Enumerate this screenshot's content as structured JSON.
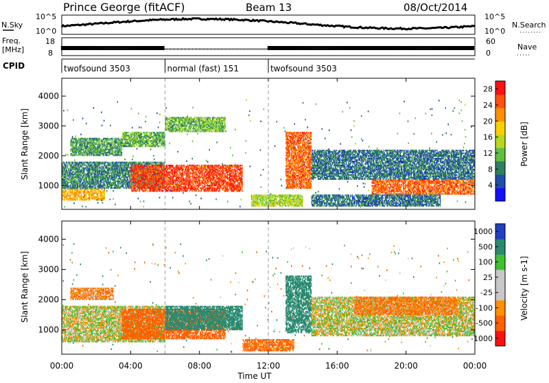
{
  "header": {
    "station": "Prince George (fitACF)",
    "beam": "Beam 13",
    "date": "08/Oct/2014"
  },
  "noise_panel": {
    "left_label": "N.Sky",
    "right_label": "N.Search",
    "right_ticks": [
      "10^5",
      "10^0"
    ],
    "left_ticks": [
      "10^5",
      "10^0"
    ]
  },
  "freq_panel": {
    "left_label_line1": "Freq.",
    "left_label_line2": "[MHz]",
    "left_ticks": [
      "18",
      "8"
    ],
    "right_label": "Nave",
    "right_ticks": [
      "60",
      "0"
    ]
  },
  "cpid_panel": {
    "label": "CPID",
    "segments": [
      {
        "name": "twofsound 3503",
        "start_hour": 0,
        "end_hour": 6
      },
      {
        "name": "normal (fast) 151",
        "start_hour": 6,
        "end_hour": 12
      },
      {
        "name": "twofsound 3503",
        "start_hour": 12,
        "end_hour": 24
      }
    ]
  },
  "x_axis": {
    "label": "Time UT",
    "ticks": [
      "00:00",
      "04:00",
      "08:00",
      "12:00",
      "16:00",
      "20:00",
      "00:00"
    ]
  },
  "chart_data": [
    {
      "type": "heatmap",
      "panel": "power",
      "ylabel": "Slant Range [km]",
      "yticks": [
        "1000",
        "2000",
        "3000",
        "4000"
      ],
      "ylim": [
        200,
        4600
      ],
      "xlim": [
        0,
        24
      ],
      "colorbar": {
        "label": "Power [dB]",
        "ticks": [
          "4",
          "8",
          "12",
          "16",
          "20",
          "24",
          "28"
        ],
        "range": [
          0,
          30
        ],
        "colors": [
          "#1010ff",
          "#1f4fa8",
          "#2f7f5f",
          "#5fbf3f",
          "#b8d820",
          "#ffd000",
          "#ff9000",
          "#ff5010",
          "#ff1010"
        ]
      },
      "regions": [
        {
          "t0": 0.0,
          "t1": 2.5,
          "r0": 500,
          "r1": 900,
          "level": 20
        },
        {
          "t0": 0.0,
          "t1": 6.0,
          "r0": 900,
          "r1": 1800,
          "level": 8
        },
        {
          "t0": 0.5,
          "t1": 3.5,
          "r0": 2000,
          "r1": 2600,
          "level": 10
        },
        {
          "t0": 3.5,
          "t1": 6.0,
          "r0": 2300,
          "r1": 2800,
          "level": 11
        },
        {
          "t0": 4.0,
          "t1": 10.5,
          "r0": 800,
          "r1": 1700,
          "level": 26
        },
        {
          "t0": 6.0,
          "t1": 9.5,
          "r0": 2800,
          "r1": 3300,
          "level": 12
        },
        {
          "t0": 11.0,
          "t1": 14.0,
          "r0": 300,
          "r1": 700,
          "level": 14
        },
        {
          "t0": 13.0,
          "t1": 14.5,
          "r0": 900,
          "r1": 2800,
          "level": 24
        },
        {
          "t0": 14.5,
          "t1": 24.0,
          "r0": 1200,
          "r1": 2200,
          "level": 7
        },
        {
          "t0": 18.0,
          "t1": 24.0,
          "r0": 700,
          "r1": 1200,
          "level": 24
        },
        {
          "t0": 14.5,
          "t1": 22.0,
          "r0": 300,
          "r1": 700,
          "level": 7
        }
      ]
    },
    {
      "type": "heatmap",
      "panel": "velocity",
      "ylabel": "Slant Range [km]",
      "yticks": [
        "1000",
        "2000",
        "3000",
        "4000"
      ],
      "ylim": [
        200,
        4600
      ],
      "xlim": [
        0,
        24
      ],
      "colorbar": {
        "label": "Velocity [m s-1]",
        "ticks": [
          "1000",
          "500",
          "100",
          "25",
          "-25",
          "-100",
          "-500",
          "-1000"
        ],
        "colors": [
          "#2040c0",
          "#2a8a70",
          "#40c030",
          "#c8c8c8",
          "#c8c8c8",
          "#ff9000",
          "#ff6000",
          "#ff1010"
        ]
      },
      "regions": [
        {
          "t0": 0.0,
          "t1": 6.0,
          "r0": 600,
          "r1": 1800,
          "level": 0
        },
        {
          "t0": 0.5,
          "t1": 3.0,
          "r0": 2000,
          "r1": 2400,
          "level": -100
        },
        {
          "t0": 3.5,
          "t1": 9.5,
          "r0": 700,
          "r1": 1700,
          "level": -200
        },
        {
          "t0": 6.0,
          "t1": 10.5,
          "r0": 1000,
          "r1": 1800,
          "level": 400
        },
        {
          "t0": 10.5,
          "t1": 13.5,
          "r0": 300,
          "r1": 700,
          "level": -150
        },
        {
          "t0": 13.0,
          "t1": 14.5,
          "r0": 900,
          "r1": 2800,
          "level": 200
        },
        {
          "t0": 14.5,
          "t1": 24.0,
          "r0": 800,
          "r1": 2100,
          "level": 0
        },
        {
          "t0": 17.0,
          "t1": 23.0,
          "r0": 1500,
          "r1": 2100,
          "level": -100
        }
      ]
    }
  ]
}
